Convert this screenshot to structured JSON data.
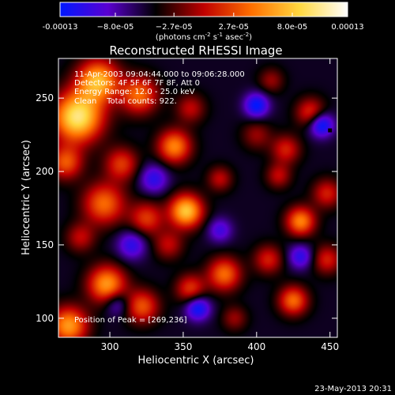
{
  "chart_data": {
    "type": "heatmap",
    "title": "Reconstructed RHESSI Image",
    "xlabel": "Heliocentric X (arcsec)",
    "ylabel": "Heliocentric Y (arcsec)",
    "xlim": [
      265,
      455
    ],
    "ylim": [
      87,
      277
    ],
    "x_ticks": [
      300,
      350,
      400,
      450
    ],
    "x_tick_labels": [
      "300",
      "350",
      "400",
      "450"
    ],
    "y_ticks": [
      100,
      150,
      200,
      250
    ],
    "y_tick_labels": [
      "100",
      "150",
      "200",
      "250"
    ],
    "colorbar": {
      "min": -0.00013,
      "max": 0.00013,
      "ticks": [
        -0.00013,
        -8e-05,
        -2.7e-05,
        2.7e-05,
        8e-05,
        0.00013
      ],
      "tick_labels": [
        "-0.00013",
        "−8.0e-05",
        "−2.7e-05",
        "2.7e-05",
        "8.0e-05",
        "0.00013"
      ],
      "units_text": "(photons cm",
      "units_sup1": "-2",
      "units_mid": " s",
      "units_sup2": "-1",
      "units_end": " asec",
      "units_sup3": "-2",
      "units_close": ")",
      "colors": [
        "#0018ff",
        "#5a00d0",
        "#000000",
        "#c00000",
        "#ff7000",
        "#ffd840",
        "#ffffff"
      ]
    },
    "annotations": [
      "11-Apr-2003 09:04:44.000 to 09:06:28.000",
      "Detectors: 4F 5F 6F 7F 8F, Att 0",
      "Energy Range: 12.0 - 25.0 keV",
      "Clean    Total counts: 922."
    ],
    "peak_label": "Position of Peak = [269,236]",
    "peak": [
      269,
      236
    ],
    "footer": "23-May-2013 20:31",
    "background_value": -5e-05,
    "sources": [
      {
        "x": 278,
        "y": 237,
        "amp": 0.00015,
        "s": 12
      },
      {
        "x": 292,
        "y": 262,
        "amp": 0.00012,
        "s": 10
      },
      {
        "x": 270,
        "y": 206,
        "amp": 8e-05,
        "s": 8
      },
      {
        "x": 320,
        "y": 252,
        "amp": 9e-05,
        "s": 9
      },
      {
        "x": 308,
        "y": 205,
        "amp": 7e-05,
        "s": 8
      },
      {
        "x": 344,
        "y": 217,
        "amp": 0.0001,
        "s": 8
      },
      {
        "x": 352,
        "y": 173,
        "amp": 0.00013,
        "s": 8
      },
      {
        "x": 296,
        "y": 178,
        "amp": 9e-05,
        "s": 10
      },
      {
        "x": 325,
        "y": 168,
        "amp": 7e-05,
        "s": 8
      },
      {
        "x": 355,
        "y": 243,
        "amp": 5e-05,
        "s": 7
      },
      {
        "x": 375,
        "y": 195,
        "amp": 5e-05,
        "s": 6
      },
      {
        "x": 410,
        "y": 262,
        "amp": 4e-05,
        "s": 6
      },
      {
        "x": 400,
        "y": 225,
        "amp": 4e-05,
        "s": 7
      },
      {
        "x": 420,
        "y": 215,
        "amp": 6e-05,
        "s": 7
      },
      {
        "x": 437,
        "y": 240,
        "amp": 7e-05,
        "s": 7
      },
      {
        "x": 430,
        "y": 166,
        "amp": 0.0001,
        "s": 7
      },
      {
        "x": 415,
        "y": 197,
        "amp": 5e-05,
        "s": 6
      },
      {
        "x": 448,
        "y": 185,
        "amp": 6e-05,
        "s": 7
      },
      {
        "x": 298,
        "y": 123,
        "amp": 0.00011,
        "s": 9
      },
      {
        "x": 272,
        "y": 95,
        "amp": 0.00011,
        "s": 9
      },
      {
        "x": 322,
        "y": 108,
        "amp": 8e-05,
        "s": 8
      },
      {
        "x": 355,
        "y": 120,
        "amp": 7e-05,
        "s": 7
      },
      {
        "x": 378,
        "y": 130,
        "amp": 9e-05,
        "s": 8
      },
      {
        "x": 408,
        "y": 140,
        "amp": 6e-05,
        "s": 7
      },
      {
        "x": 425,
        "y": 112,
        "amp": 9e-05,
        "s": 7
      },
      {
        "x": 448,
        "y": 140,
        "amp": 6e-05,
        "s": 7
      },
      {
        "x": 385,
        "y": 100,
        "amp": 4e-05,
        "s": 6
      },
      {
        "x": 340,
        "y": 150,
        "amp": 5e-05,
        "s": 7
      },
      {
        "x": 280,
        "y": 155,
        "amp": 5e-05,
        "s": 7
      },
      {
        "x": 330,
        "y": 195,
        "amp": -6e-05,
        "s": 7
      },
      {
        "x": 305,
        "y": 110,
        "amp": -5e-05,
        "s": 6
      },
      {
        "x": 400,
        "y": 245,
        "amp": -8e-05,
        "s": 6
      },
      {
        "x": 444,
        "y": 232,
        "amp": -9e-05,
        "s": 6
      },
      {
        "x": 360,
        "y": 107,
        "amp": -8e-05,
        "s": 6
      },
      {
        "x": 430,
        "y": 142,
        "amp": -6e-05,
        "s": 6
      },
      {
        "x": 315,
        "y": 150,
        "amp": -6e-05,
        "s": 7
      },
      {
        "x": 375,
        "y": 160,
        "amp": -5e-05,
        "s": 6
      }
    ]
  }
}
